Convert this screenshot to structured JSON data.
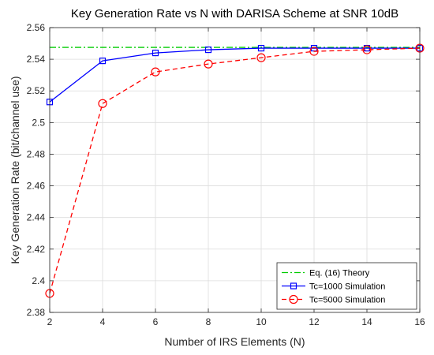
{
  "chart_data": {
    "type": "line",
    "title": "Key Generation Rate vs N with DARISA Scheme at SNR 10dB",
    "xlabel": "Number of IRS Elements (N)",
    "ylabel": "Key Generation Rate (bit/channel use)",
    "xlim": [
      2,
      16
    ],
    "ylim": [
      2.38,
      2.56
    ],
    "xticks": [
      2,
      4,
      6,
      8,
      10,
      12,
      14,
      16
    ],
    "yticks": [
      2.38,
      2.4,
      2.42,
      2.44,
      2.46,
      2.48,
      2.5,
      2.52,
      2.54,
      2.56
    ],
    "xtick_labels": [
      "2",
      "4",
      "6",
      "8",
      "10",
      "12",
      "14",
      "16"
    ],
    "ytick_labels": [
      "2.38",
      "2.4",
      "2.42",
      "2.44",
      "2.46",
      "2.48",
      "2.5",
      "2.52",
      "2.54",
      "2.56"
    ],
    "grid": true,
    "legend_position": "bottom-right",
    "series": [
      {
        "name": "Eq. (16) Theory",
        "color": "#00CC00",
        "line_style": "dash-dot",
        "marker": "none",
        "x": [
          2,
          16
        ],
        "values": [
          2.5475,
          2.5475
        ]
      },
      {
        "name": "Tc=1000 Simulation",
        "color": "#0000FF",
        "line_style": "solid",
        "marker": "square",
        "x": [
          2,
          4,
          6,
          8,
          10,
          12,
          14,
          16
        ],
        "values": [
          2.513,
          2.539,
          2.544,
          2.546,
          2.547,
          2.547,
          2.547,
          2.547
        ]
      },
      {
        "name": "Tc=5000 Simulation",
        "color": "#FF0000",
        "line_style": "dashed",
        "marker": "circle",
        "x": [
          2,
          4,
          6,
          8,
          10,
          12,
          14,
          16
        ],
        "values": [
          2.392,
          2.512,
          2.532,
          2.537,
          2.541,
          2.545,
          2.546,
          2.547
        ]
      }
    ]
  }
}
